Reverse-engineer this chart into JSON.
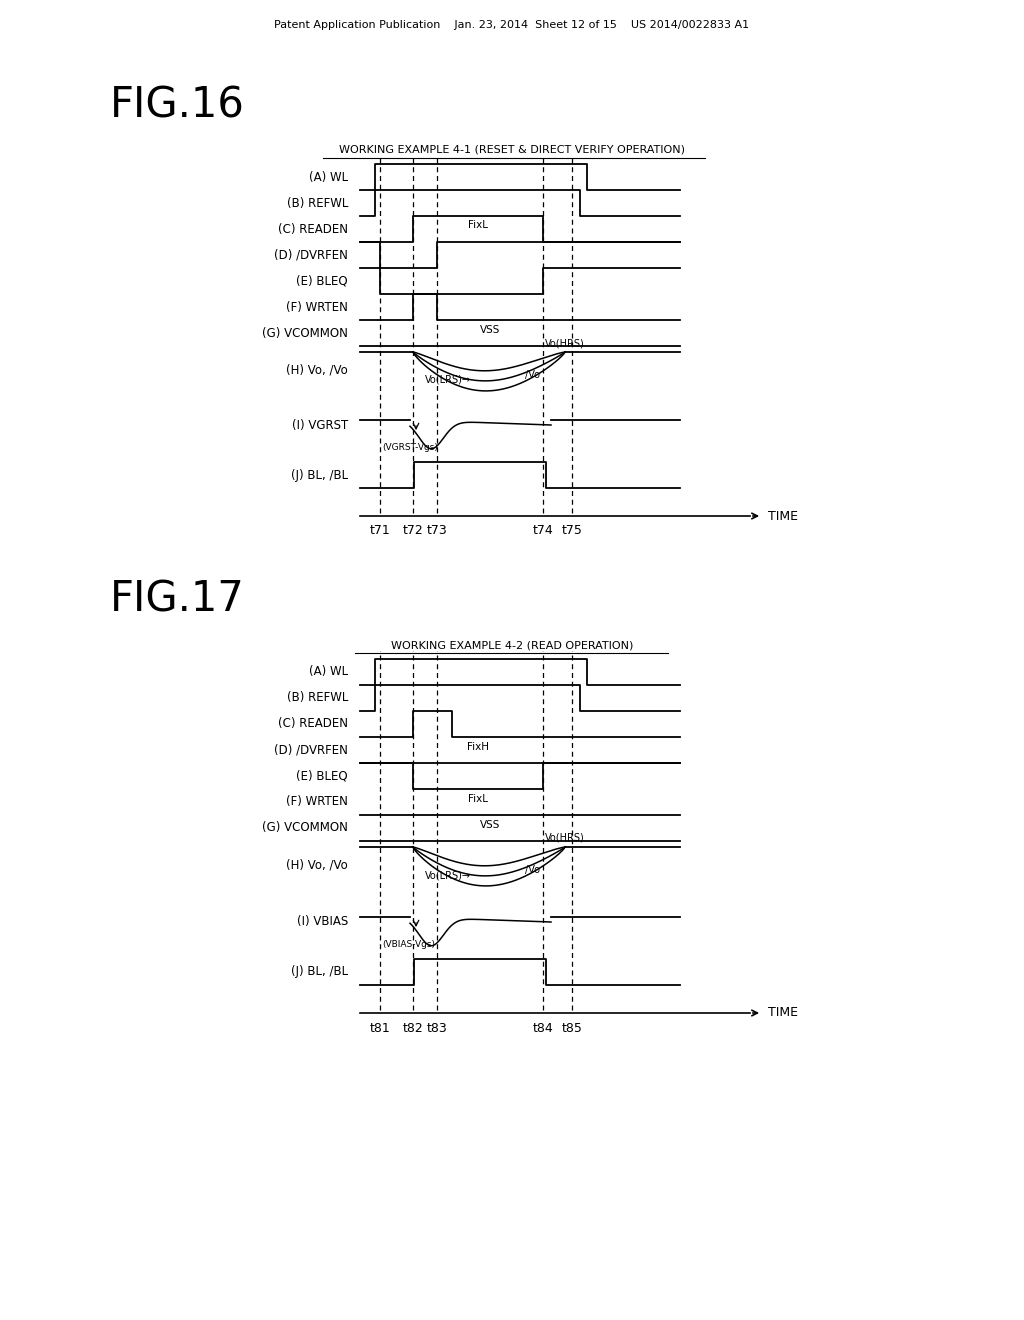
{
  "bg_color": "#ffffff",
  "header_text": "Patent Application Publication    Jan. 23, 2014  Sheet 12 of 15    US 2014/0022833 A1",
  "fig16_title": "FIG.16",
  "fig16_subtitle": "WORKING EXAMPLE 4-1 (RESET & DIRECT VERIFY OPERATION)",
  "fig16_signals": [
    "(A) WL",
    "(B) REFWL",
    "(C) READEN",
    "(D) /DVRFEN",
    "(E) BLEQ",
    "(F) WRTEN",
    "(G) VCOMMON",
    "(H) Vo, /Vo",
    "(I) VGRST",
    "(J) BL, /BL"
  ],
  "fig16_time_labels": [
    "t71",
    "t72",
    "t73",
    "t74",
    "t75"
  ],
  "fig17_title": "FIG.17",
  "fig17_subtitle": "WORKING EXAMPLE 4-2 (READ OPERATION)",
  "fig17_signals": [
    "(A) WL",
    "(B) REFWL",
    "(C) READEN",
    "(D) /DVRFEN",
    "(E) BLEQ",
    "(F) WRTEN",
    "(G) VCOMMON",
    "(H) Vo, /Vo",
    "(I) VBIAS",
    "(J) BL, /BL"
  ],
  "fig17_time_labels": [
    "t81",
    "t82",
    "t83",
    "t84",
    "t85"
  ]
}
